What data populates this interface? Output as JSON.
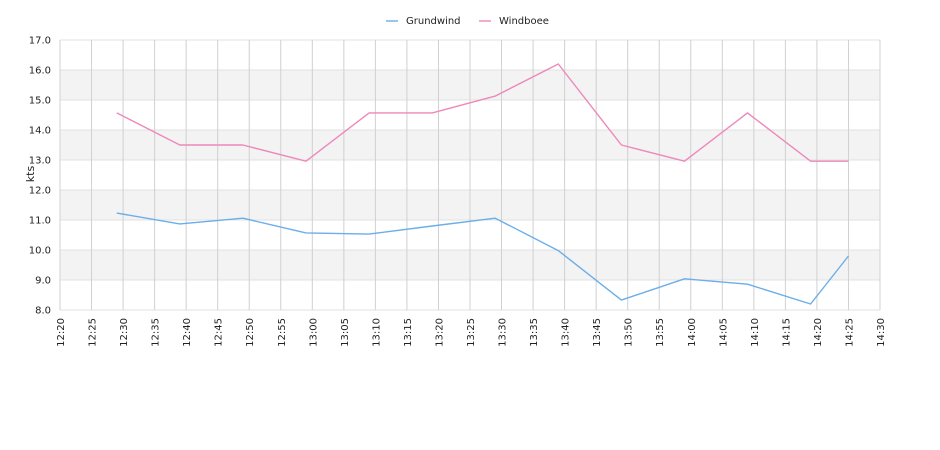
{
  "chart_data": {
    "type": "line",
    "ylabel": "kts",
    "ylim": [
      8.0,
      17.0
    ],
    "xlim": [
      "12:20",
      "14:30"
    ],
    "y_ticks": [
      "8.0",
      "9.0",
      "10.0",
      "11.0",
      "12.0",
      "13.0",
      "14.0",
      "15.0",
      "16.0",
      "17.0"
    ],
    "x_ticks": [
      "12:20",
      "12:25",
      "12:30",
      "12:35",
      "12:40",
      "12:45",
      "12:50",
      "12:55",
      "13:00",
      "13:05",
      "13:10",
      "13:15",
      "13:20",
      "13:25",
      "13:30",
      "13:35",
      "13:40",
      "13:45",
      "13:50",
      "13:55",
      "14:00",
      "14:05",
      "14:10",
      "14:15",
      "14:20",
      "14:25",
      "14:30"
    ],
    "legend_position": "top-center",
    "grid": true,
    "alternating_bands": true,
    "series": [
      {
        "name": "Grundwind",
        "color": "#6aaeea",
        "points": [
          [
            "12:29",
            11.23
          ],
          [
            "12:39",
            10.87
          ],
          [
            "12:49",
            11.06
          ],
          [
            "12:59",
            10.57
          ],
          [
            "13:09",
            10.53
          ],
          [
            "13:19",
            10.8
          ],
          [
            "13:29",
            11.06
          ],
          [
            "13:39",
            9.98
          ],
          [
            "13:49",
            8.33
          ],
          [
            "13:59",
            9.04
          ],
          [
            "14:09",
            8.86
          ],
          [
            "14:19",
            8.2
          ],
          [
            "14:25",
            9.8
          ]
        ]
      },
      {
        "name": "Windboee",
        "color": "#ee88bb",
        "points": [
          [
            "12:29",
            14.57
          ],
          [
            "12:39",
            13.5
          ],
          [
            "12:49",
            13.5
          ],
          [
            "12:59",
            12.96
          ],
          [
            "13:09",
            14.57
          ],
          [
            "13:19",
            14.57
          ],
          [
            "13:29",
            15.13
          ],
          [
            "13:39",
            16.2
          ],
          [
            "13:49",
            13.5
          ],
          [
            "13:59",
            12.96
          ],
          [
            "14:09",
            14.57
          ],
          [
            "14:19",
            12.96
          ],
          [
            "14:25",
            12.96
          ]
        ]
      }
    ]
  }
}
